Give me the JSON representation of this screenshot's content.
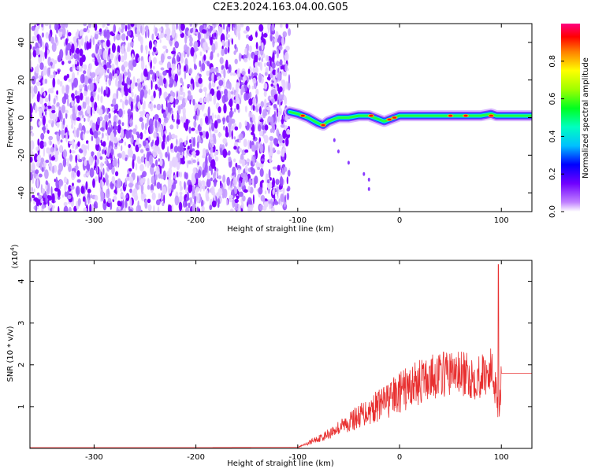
{
  "chart_data": [
    {
      "type": "heatmap",
      "title": "C2E3.2024.163.04.00.G05",
      "xlabel": "Height of straight line (km)",
      "ylabel": "Frequency (Hz)",
      "xlim": [
        -363,
        130
      ],
      "ylim": [
        -50,
        50
      ],
      "xticks": [
        -300,
        -200,
        -100,
        0,
        100
      ],
      "yticks": [
        40,
        20,
        0,
        -20,
        -40
      ],
      "colorbar": {
        "label": "Normalized spectral amplitude",
        "range": [
          0,
          1
        ],
        "ticks": [
          0.0,
          0.2,
          0.4,
          0.6,
          0.8
        ],
        "colormap": "rainbow"
      },
      "features": {
        "noise_region_x": [
          -363,
          -108
        ],
        "noise_color": "#7d00ff",
        "signal_trace": {
          "x": [
            -108,
            -100,
            -90,
            -80,
            -75,
            -70,
            -65,
            -60,
            -50,
            -40,
            -30,
            -20,
            -15,
            -10,
            -5,
            0,
            20,
            40,
            60,
            80,
            90,
            95,
            100,
            110,
            130
          ],
          "y": [
            3,
            2,
            0,
            -3,
            -4,
            -2,
            -1,
            0,
            0,
            1,
            1,
            -1,
            -2,
            -1,
            0,
            1,
            1,
            1,
            1,
            1,
            2,
            1,
            1,
            1,
            1
          ]
        }
      },
      "grid": false,
      "legend": "none"
    },
    {
      "type": "line",
      "title": "",
      "xlabel": "Height of straight line (km)",
      "ylabel": "SNR (10 * v/v)",
      "y_multiplier_label": "(x10",
      "y_multiplier_exp": "4",
      "y_multiplier_close": ")",
      "xlim": [
        -363,
        130
      ],
      "ylim": [
        0,
        4.5
      ],
      "xticks": [
        -300,
        -200,
        -100,
        0,
        100
      ],
      "yticks": [
        1,
        2,
        3,
        4
      ],
      "series": [
        {
          "color": "#e83030",
          "x": [
            -363,
            -300,
            -200,
            -100,
            -92,
            -85,
            -75,
            -65,
            -55,
            -45,
            -35,
            -25,
            -15,
            -5,
            5,
            15,
            25,
            35,
            45,
            55,
            65,
            75,
            85,
            90,
            95,
            97,
            100,
            110,
            130
          ],
          "values": [
            0.02,
            0.02,
            0.02,
            0.03,
            0.1,
            0.2,
            0.3,
            0.45,
            0.6,
            0.75,
            0.9,
            1.05,
            1.2,
            1.35,
            1.5,
            1.65,
            1.75,
            1.85,
            1.9,
            1.92,
            1.85,
            1.82,
            1.9,
            2.0,
            1.6,
            1.0,
            1.8,
            1.8,
            1.8
          ]
        }
      ],
      "annotations": [
        {
          "x": 97,
          "y": 4.4,
          "note": "spike"
        }
      ],
      "grid": false,
      "legend": "none"
    }
  ]
}
